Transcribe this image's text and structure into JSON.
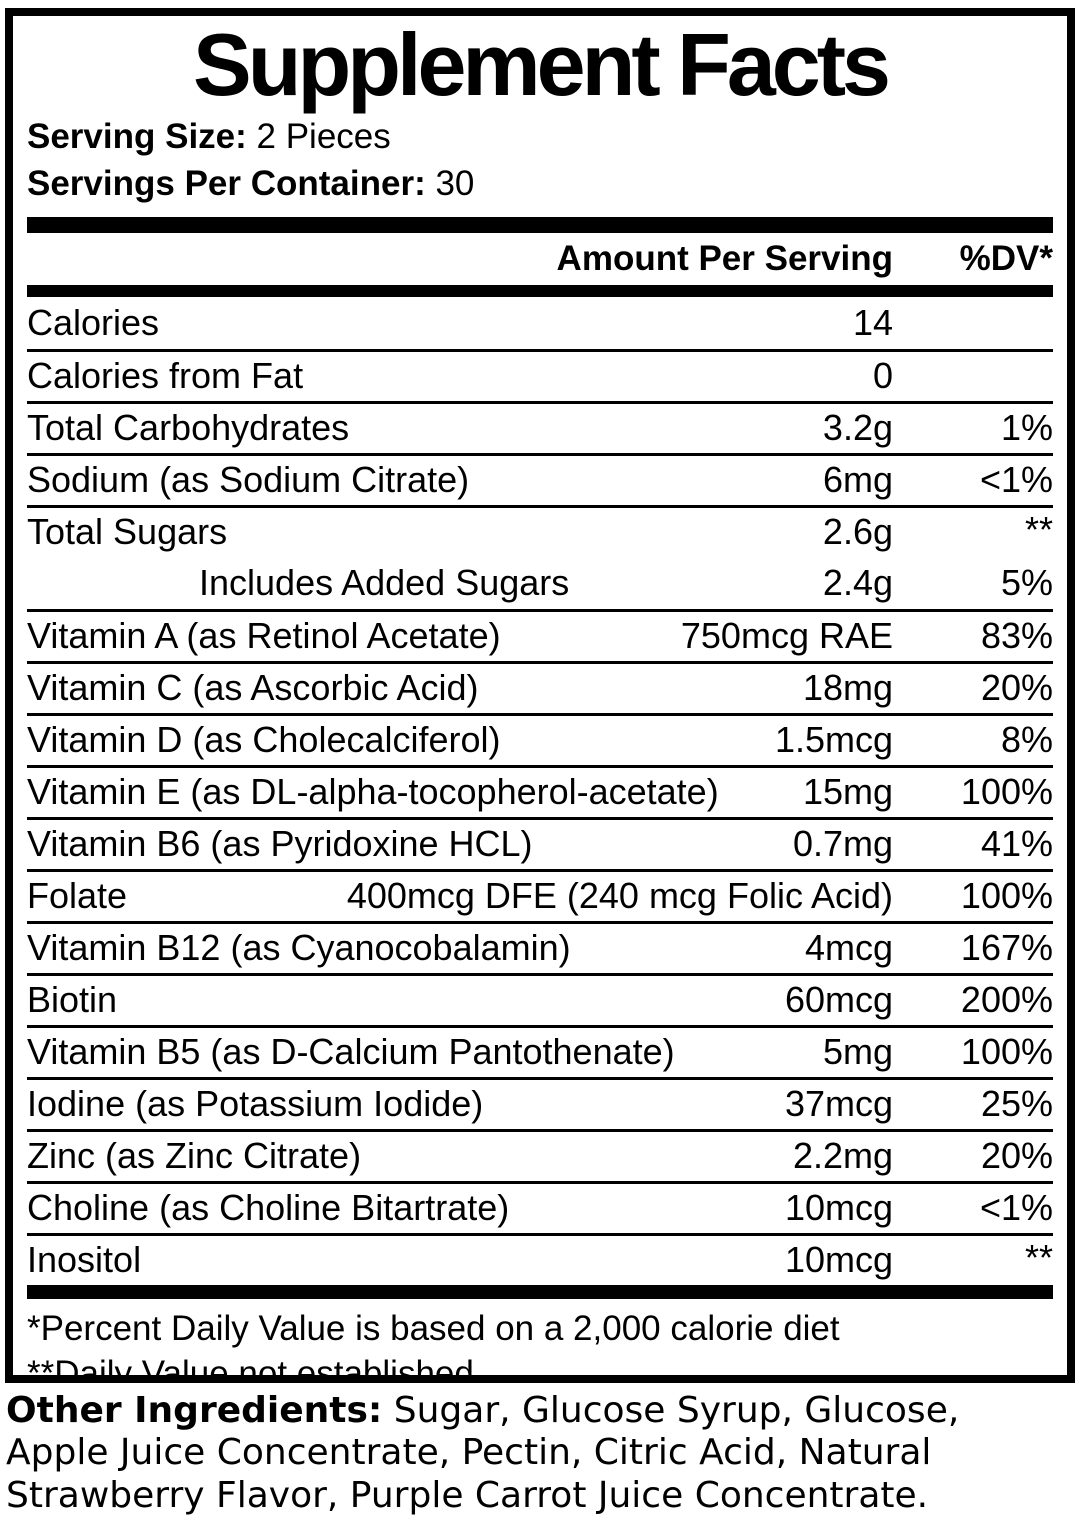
{
  "title": "Supplement Facts",
  "serving": {
    "size_label": "Serving Size:",
    "size_value": " 2 Pieces",
    "per_container_label": "Servings Per Container:",
    "per_container_value": " 30"
  },
  "columns": {
    "amount": "Amount Per Serving",
    "dv": "%DV*"
  },
  "rows": [
    {
      "name": "Calories",
      "amount": "14",
      "dv": ""
    },
    {
      "name": "Calories from Fat",
      "amount": "0",
      "dv": ""
    },
    {
      "name": "Total Carbohydrates",
      "amount": "3.2g",
      "dv": "1%"
    },
    {
      "name": "Sodium (as Sodium Citrate)",
      "amount": "6mg",
      "dv": "<1%"
    },
    {
      "name": "Total Sugars",
      "amount": "2.6g",
      "dv": "**"
    },
    {
      "name": "Includes Added Sugars",
      "amount": "2.4g",
      "dv": "5%",
      "indent": true,
      "no_sep": true
    },
    {
      "name": "Vitamin A (as Retinol Acetate)",
      "amount": "750mcg RAE",
      "dv": "83%"
    },
    {
      "name": "Vitamin C (as Ascorbic Acid)",
      "amount": "18mg",
      "dv": "20%"
    },
    {
      "name": "Vitamin D (as Cholecalciferol)",
      "amount": "1.5mcg",
      "dv": "8%"
    },
    {
      "name": "Vitamin E (as DL-alpha-tocopherol-acetate)",
      "amount": "15mg",
      "dv": "100%"
    },
    {
      "name": "Vitamin B6 (as Pyridoxine HCL)",
      "amount": "0.7mg",
      "dv": "41%"
    },
    {
      "name": "Folate",
      "amount": "400mcg DFE (240 mcg Folic Acid)",
      "dv": "100%"
    },
    {
      "name": "Vitamin B12 (as Cyanocobalamin)",
      "amount": "4mcg",
      "dv": "167%"
    },
    {
      "name": "Biotin",
      "amount": "60mcg",
      "dv": "200%"
    },
    {
      "name": "Vitamin B5 (as D-Calcium Pantothenate)",
      "amount": "5mg",
      "dv": "100%"
    },
    {
      "name": "Iodine (as Potassium Iodide)",
      "amount": "37mcg",
      "dv": "25%"
    },
    {
      "name": "Zinc (as Zinc Citrate)",
      "amount": "2.2mg",
      "dv": "20%"
    },
    {
      "name": "Choline (as Choline Bitartrate)",
      "amount": "10mcg",
      "dv": "<1%"
    },
    {
      "name": "Inositol",
      "amount": "10mcg",
      "dv": "**"
    }
  ],
  "footnotes": [
    "*Percent Daily Value is based on a 2,000 calorie diet",
    "**Daily Value not established."
  ],
  "other_ingredients": {
    "label": "Other Ingredients:",
    "text": " Sugar, Glucose Syrup, Glucose, Apple Juice Concentrate, Pectin, Citric Acid, Natural Strawberry Flavor, Purple Carrot Juice Concentrate."
  },
  "colors": {
    "ink": "#000000",
    "background": "#ffffff"
  }
}
